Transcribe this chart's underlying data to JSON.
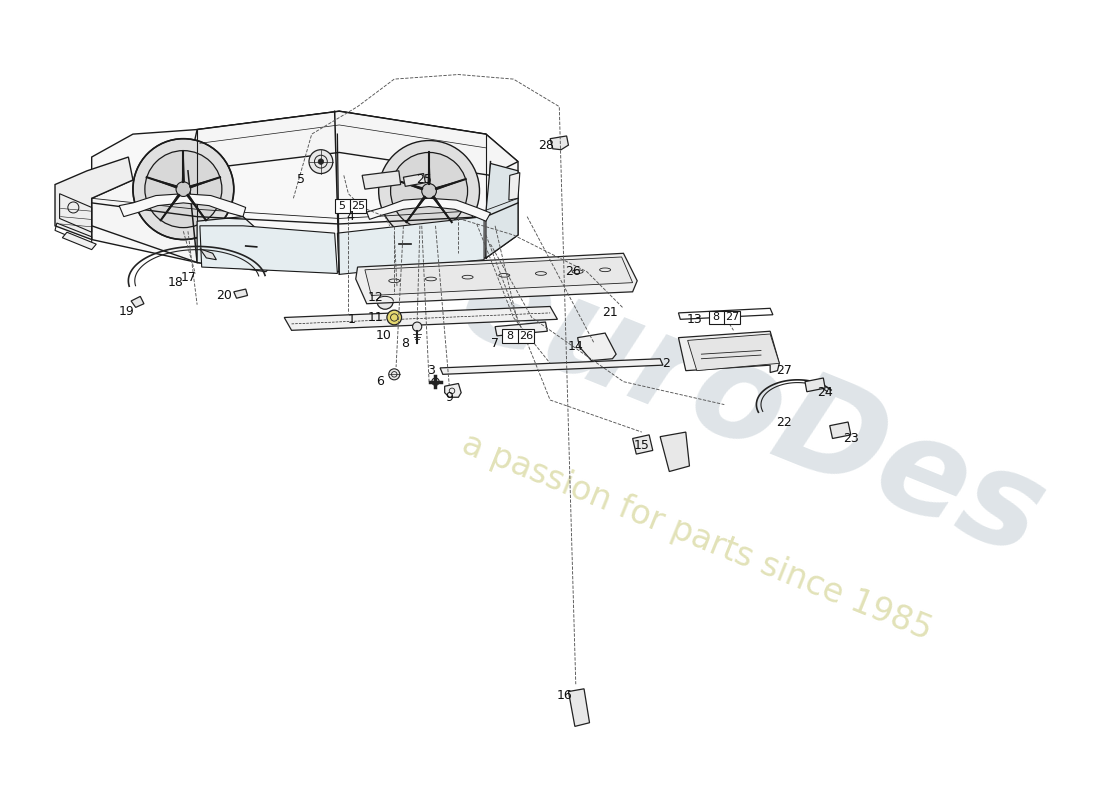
{
  "bg_color": "#ffffff",
  "line_color": "#1a1a1a",
  "label_color": "#111111",
  "watermark1_color": "#b8c4cc",
  "watermark2_color": "#d8d8a0",
  "watermark1_text": "euroDes",
  "watermark2_text": "a passion for parts since 1985",
  "figsize": [
    11.0,
    8.0
  ],
  "dpi": 100
}
